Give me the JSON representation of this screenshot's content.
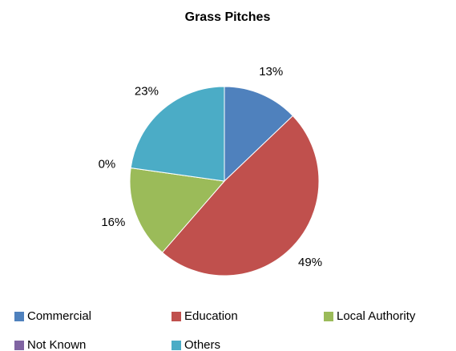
{
  "chart_data": {
    "type": "pie",
    "title": "Grass Pitches",
    "categories": [
      "Commercial",
      "Education",
      "Local Authority",
      "Not Known",
      "Others"
    ],
    "values": [
      13,
      49,
      16,
      0,
      23
    ],
    "value_labels": [
      "13%",
      "49%",
      "16%",
      "0%",
      "23%"
    ],
    "colors": [
      "#4f81bd",
      "#c0504d",
      "#9bbb59",
      "#8064a2",
      "#4bacc6"
    ],
    "legend": "bottom"
  }
}
